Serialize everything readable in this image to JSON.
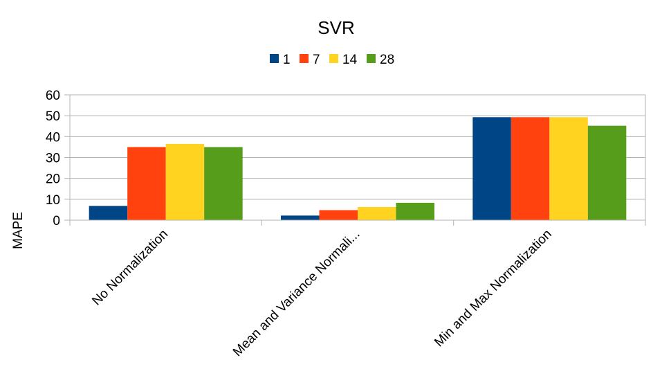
{
  "chart_data": {
    "type": "bar",
    "title": "SVR",
    "xlabel": "",
    "ylabel": "MAPE",
    "ylim": [
      0,
      60
    ],
    "yticks": [
      0,
      10,
      20,
      30,
      40,
      50,
      60
    ],
    "grid": true,
    "legend_position": "top",
    "categories": [
      "No Normalization",
      "Mean and Variance Normali...",
      "Min and Max Normalization"
    ],
    "series": [
      {
        "name": "1",
        "color": "#004586",
        "values": [
          6.8,
          2.2,
          49.3
        ]
      },
      {
        "name": "7",
        "color": "#ff420e",
        "values": [
          35.0,
          4.8,
          49.3
        ]
      },
      {
        "name": "14",
        "color": "#ffd320",
        "values": [
          36.5,
          6.3,
          49.3
        ]
      },
      {
        "name": "28",
        "color": "#579d1c",
        "values": [
          35.0,
          8.3,
          45.2
        ]
      }
    ]
  }
}
